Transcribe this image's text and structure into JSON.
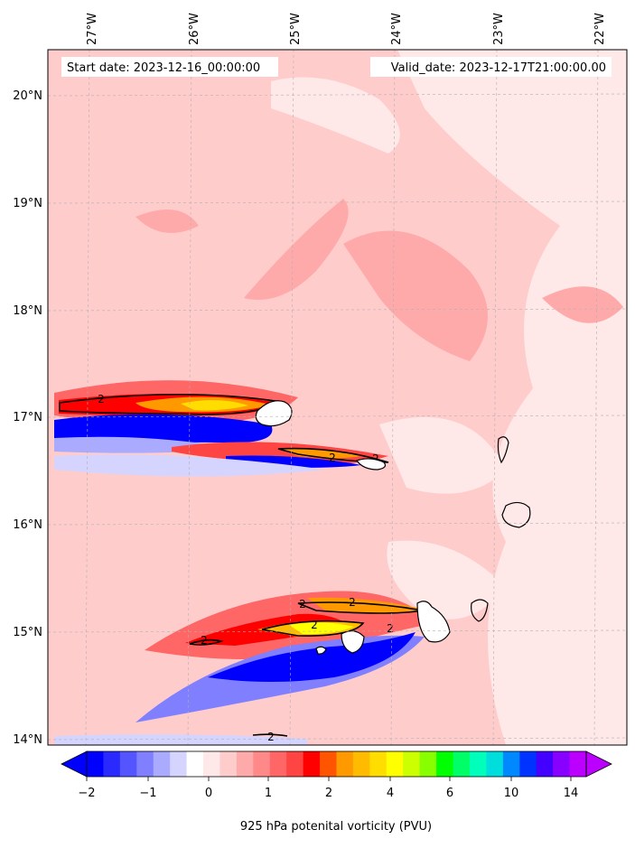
{
  "map": {
    "start_label": "Start date: 2023-12-16_00:00:00",
    "valid_label": "Valid_date: 2023-12-17T21:00:00.00",
    "lon_ticks": [
      "27°W",
      "26°W",
      "25°W",
      "24°W",
      "23°W",
      "22°W"
    ],
    "lat_ticks": [
      "20°N",
      "19°N",
      "18°N",
      "17°N",
      "16°N",
      "15°N",
      "14°N"
    ],
    "contour_label": "2",
    "grid": true
  },
  "colorbar": {
    "label": "925 hPa potenital vorticity (PVU)",
    "tick_labels": [
      "−2",
      "−1",
      "0",
      "1",
      "2",
      "4",
      "6",
      "10",
      "14"
    ],
    "colors": [
      "#0000ff",
      "#2a2aff",
      "#5555ff",
      "#7f7fff",
      "#aaaaff",
      "#d4d4ff",
      "#ffffff",
      "#ffe8e8",
      "#ffcccc",
      "#ffaaaa",
      "#ff8888",
      "#ff6666",
      "#ff4444",
      "#ff0000",
      "#ff5500",
      "#ff9900",
      "#ffbb00",
      "#ffdd00",
      "#ffff00",
      "#ccff00",
      "#88ff00",
      "#00ff00",
      "#00ff66",
      "#00ffbb",
      "#00dddd",
      "#0088ff",
      "#0033ff",
      "#4400ff",
      "#8800ff",
      "#bb00ff"
    ]
  }
}
